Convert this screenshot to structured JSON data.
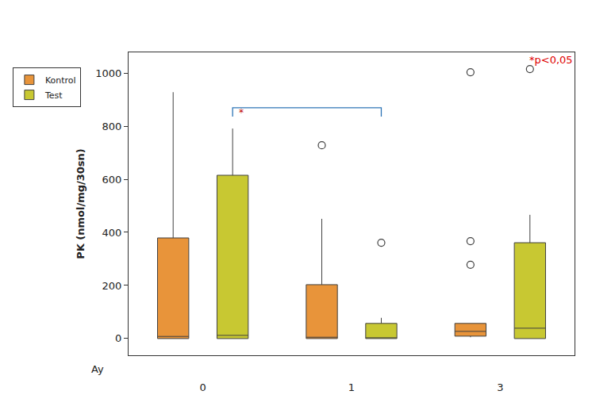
{
  "chart_data": {
    "type": "box",
    "x_label": "Ay",
    "y_label": "PK (nmol/mg/30sn)",
    "categories": [
      "0",
      "1",
      "3"
    ],
    "ylim": [
      -63,
      1078
    ],
    "yticks": [
      0,
      200,
      400,
      600,
      800,
      1000
    ],
    "grid": false,
    "legend": "top left",
    "annotation": "*p<0,05",
    "series": [
      {
        "name": "Kontrol",
        "color": "#e8943a",
        "q1": [
          0,
          0,
          9
        ],
        "median": [
          8,
          5,
          27
        ],
        "q3": [
          379,
          203,
          57
        ],
        "lowerfence": [
          0,
          0,
          5
        ],
        "upperfence": [
          928,
          451,
          57
        ],
        "outliers": [
          [],
          [
            728
          ],
          [
            1003,
            367,
            278
          ]
        ]
      },
      {
        "name": "Test",
        "color": "#c8c832",
        "q1": [
          0,
          0,
          0
        ],
        "median": [
          12,
          3,
          39
        ],
        "q3": [
          615,
          57,
          361
        ],
        "lowerfence": [
          0,
          0,
          0
        ],
        "upperfence": [
          791,
          78,
          466
        ],
        "outliers": [
          [],
          [
            361
          ],
          [
            1015
          ]
        ]
      }
    ],
    "significance": {
      "series": "Test",
      "from": "0",
      "to": "1",
      "label": "*"
    }
  }
}
